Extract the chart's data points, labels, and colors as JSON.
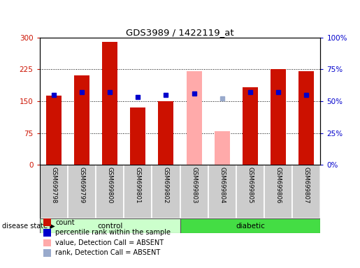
{
  "title": "GDS3989 / 1422119_at",
  "samples": [
    "GSM699798",
    "GSM699799",
    "GSM699800",
    "GSM699801",
    "GSM699802",
    "GSM699803",
    "GSM699804",
    "GSM699805",
    "GSM699806",
    "GSM699807"
  ],
  "groups": [
    "control",
    "control",
    "control",
    "control",
    "control",
    "diabetic",
    "diabetic",
    "diabetic",
    "diabetic",
    "diabetic"
  ],
  "bar_values": [
    163,
    210,
    290,
    135,
    150,
    null,
    null,
    183,
    225,
    220
  ],
  "bar_absent_values": [
    null,
    null,
    null,
    null,
    null,
    220,
    80,
    null,
    null,
    null
  ],
  "rank_values": [
    55,
    57,
    57,
    53,
    55,
    56,
    null,
    57,
    57,
    55
  ],
  "rank_absent_values": [
    null,
    null,
    null,
    null,
    null,
    null,
    52,
    null,
    null,
    null
  ],
  "ylim_left": [
    0,
    300
  ],
  "ylim_right": [
    0,
    100
  ],
  "yticks_left": [
    0,
    75,
    150,
    225,
    300
  ],
  "yticks_right": [
    0,
    25,
    50,
    75,
    100
  ],
  "ytick_labels_left": [
    "0",
    "75",
    "150",
    "225",
    "300"
  ],
  "ytick_labels_right": [
    "0%",
    "25%",
    "50%",
    "75%",
    "100%"
  ],
  "bar_color_present": "#cc1100",
  "bar_color_absent": "#ffaaaa",
  "rank_color_present": "#0000cc",
  "rank_color_absent": "#99aacc",
  "control_bg": "#ccffcc",
  "diabetic_bg": "#44dd44",
  "xticklabel_bg": "#cccccc",
  "bar_width": 0.55,
  "rank_marker_size": 4,
  "legend_items": [
    {
      "label": "count",
      "color": "#cc1100"
    },
    {
      "label": "percentile rank within the sample",
      "color": "#0000cc"
    },
    {
      "label": "value, Detection Call = ABSENT",
      "color": "#ffaaaa"
    },
    {
      "label": "rank, Detection Call = ABSENT",
      "color": "#99aacc"
    }
  ],
  "fig_width": 5.15,
  "fig_height": 3.84
}
